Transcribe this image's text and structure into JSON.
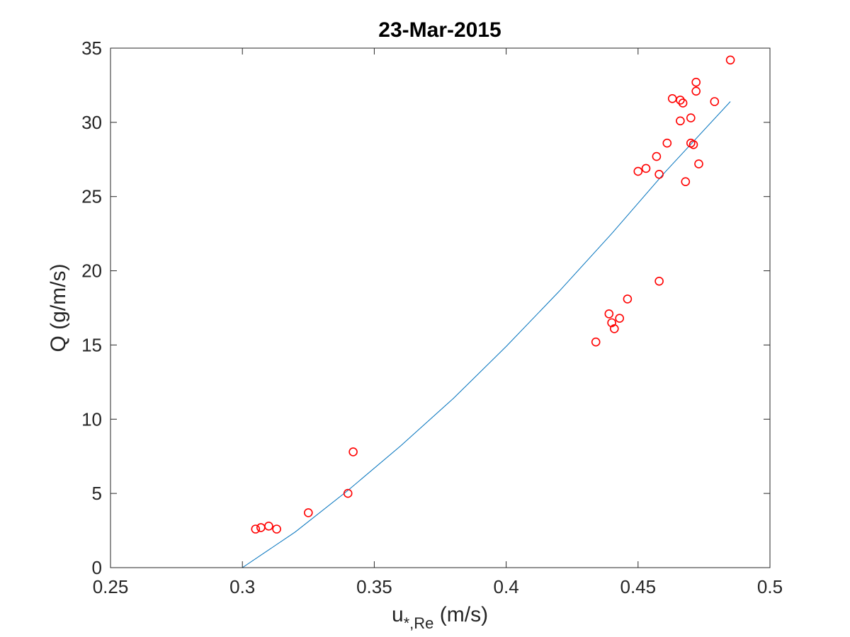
{
  "chart_data": {
    "type": "scatter",
    "title": "23-Mar-2015",
    "xlabel": "u",
    "xlabel_sub": "*,Re",
    "xlabel_unit": " (m/s)",
    "ylabel": "Q (g/m/s)",
    "xlim": [
      0.25,
      0.5
    ],
    "ylim": [
      0,
      35
    ],
    "xticks": [
      0.25,
      0.3,
      0.35,
      0.4,
      0.45,
      0.5
    ],
    "xtick_labels": [
      "0.25",
      "0.3",
      "0.35",
      "0.4",
      "0.45",
      "0.5"
    ],
    "yticks": [
      0,
      5,
      10,
      15,
      20,
      25,
      30,
      35
    ],
    "ytick_labels": [
      "0",
      "5",
      "10",
      "15",
      "20",
      "25",
      "30",
      "35"
    ],
    "grid": false,
    "box": true,
    "series": [
      {
        "type": "scatter",
        "marker": "circle",
        "color": "#ff0000",
        "points": [
          [
            0.305,
            2.6
          ],
          [
            0.307,
            2.7
          ],
          [
            0.31,
            2.8
          ],
          [
            0.313,
            2.6
          ],
          [
            0.325,
            3.7
          ],
          [
            0.34,
            5.0
          ],
          [
            0.342,
            7.8
          ],
          [
            0.434,
            15.2
          ],
          [
            0.439,
            17.1
          ],
          [
            0.44,
            16.5
          ],
          [
            0.441,
            16.1
          ],
          [
            0.443,
            16.8
          ],
          [
            0.446,
            18.1
          ],
          [
            0.458,
            19.3
          ],
          [
            0.45,
            26.7
          ],
          [
            0.453,
            26.9
          ],
          [
            0.457,
            27.7
          ],
          [
            0.458,
            26.5
          ],
          [
            0.461,
            28.6
          ],
          [
            0.463,
            31.6
          ],
          [
            0.466,
            30.1
          ],
          [
            0.466,
            31.5
          ],
          [
            0.467,
            31.3
          ],
          [
            0.468,
            26.0
          ],
          [
            0.47,
            30.3
          ],
          [
            0.47,
            28.6
          ],
          [
            0.471,
            28.5
          ],
          [
            0.472,
            32.1
          ],
          [
            0.472,
            32.7
          ],
          [
            0.473,
            27.2
          ],
          [
            0.479,
            31.4
          ],
          [
            0.485,
            34.2
          ]
        ]
      },
      {
        "type": "line",
        "color": "#0072bd",
        "points": [
          [
            0.3,
            0.0
          ],
          [
            0.32,
            2.4
          ],
          [
            0.34,
            5.2
          ],
          [
            0.36,
            8.2
          ],
          [
            0.38,
            11.4
          ],
          [
            0.4,
            14.9
          ],
          [
            0.42,
            18.6
          ],
          [
            0.44,
            22.5
          ],
          [
            0.46,
            26.6
          ],
          [
            0.485,
            31.4
          ]
        ]
      }
    ]
  }
}
